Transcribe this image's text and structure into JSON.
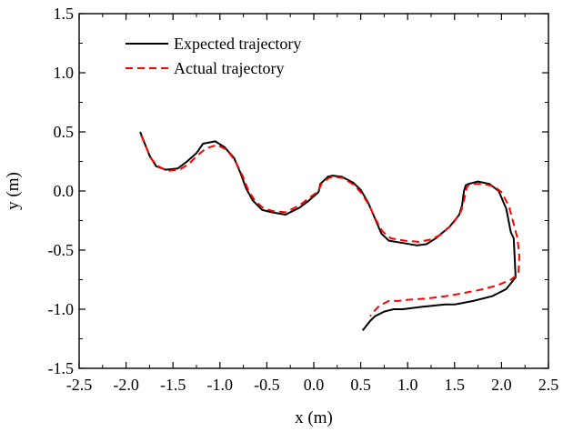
{
  "chart_data": {
    "type": "line",
    "title": "",
    "xlabel": "x (m)",
    "ylabel": "y (m)",
    "xlim": [
      -2.5,
      2.5
    ],
    "ylim": [
      -1.5,
      1.5
    ],
    "x_ticks": [
      -2.5,
      -2.0,
      -1.5,
      -1.0,
      -0.5,
      0.0,
      0.5,
      1.0,
      1.5,
      2.0,
      2.5
    ],
    "y_ticks": [
      -1.5,
      -1.0,
      -0.5,
      0.0,
      0.5,
      1.0,
      1.5
    ],
    "x_tick_labels": [
      "-2.5",
      "-2.0",
      "-1.5",
      "-1.0",
      "-0.5",
      "0.0",
      "0.5",
      "1.0",
      "1.5",
      "2.0",
      "2.5"
    ],
    "y_tick_labels": [
      "-1.5",
      "-1.0",
      "-0.5",
      "0.0",
      "0.5",
      "1.0",
      "1.5"
    ],
    "grid": false,
    "legend_position": "top-left",
    "series": [
      {
        "name": "Expected trajectory",
        "color": "#000000",
        "style": "solid",
        "points": [
          [
            -1.85,
            0.5
          ],
          [
            -1.8,
            0.4
          ],
          [
            -1.75,
            0.3
          ],
          [
            -1.68,
            0.21
          ],
          [
            -1.58,
            0.18
          ],
          [
            -1.45,
            0.19
          ],
          [
            -1.35,
            0.25
          ],
          [
            -1.25,
            0.32
          ],
          [
            -1.18,
            0.4
          ],
          [
            -1.05,
            0.42
          ],
          [
            -0.95,
            0.37
          ],
          [
            -0.85,
            0.28
          ],
          [
            -0.78,
            0.15
          ],
          [
            -0.72,
            0.02
          ],
          [
            -0.65,
            -0.08
          ],
          [
            -0.55,
            -0.16
          ],
          [
            -0.45,
            -0.18
          ],
          [
            -0.3,
            -0.2
          ],
          [
            -0.15,
            -0.14
          ],
          [
            -0.05,
            -0.08
          ],
          [
            0.05,
            -0.01
          ],
          [
            0.07,
            0.06
          ],
          [
            0.15,
            0.12
          ],
          [
            0.2,
            0.13
          ],
          [
            0.3,
            0.12
          ],
          [
            0.42,
            0.07
          ],
          [
            0.5,
            0.01
          ],
          [
            0.58,
            -0.1
          ],
          [
            0.65,
            -0.23
          ],
          [
            0.72,
            -0.36
          ],
          [
            0.8,
            -0.42
          ],
          [
            0.95,
            -0.44
          ],
          [
            1.1,
            -0.46
          ],
          [
            1.2,
            -0.45
          ],
          [
            1.3,
            -0.4
          ],
          [
            1.45,
            -0.3
          ],
          [
            1.55,
            -0.2
          ],
          [
            1.58,
            -0.12
          ],
          [
            1.6,
            0.0
          ],
          [
            1.62,
            0.05
          ],
          [
            1.65,
            0.06
          ],
          [
            1.75,
            0.08
          ],
          [
            1.87,
            0.06
          ],
          [
            1.97,
            0.0
          ],
          [
            2.05,
            -0.15
          ],
          [
            2.1,
            -0.35
          ],
          [
            2.13,
            -0.4
          ],
          [
            2.14,
            -0.55
          ],
          [
            2.15,
            -0.73
          ],
          [
            2.05,
            -0.83
          ],
          [
            1.9,
            -0.89
          ],
          [
            1.7,
            -0.93
          ],
          [
            1.5,
            -0.96
          ],
          [
            1.4,
            -0.96
          ],
          [
            1.15,
            -0.98
          ],
          [
            0.95,
            -1.0
          ],
          [
            0.85,
            -1.0
          ],
          [
            0.75,
            -1.02
          ],
          [
            0.65,
            -1.06
          ],
          [
            0.6,
            -1.1
          ],
          [
            0.52,
            -1.18
          ]
        ]
      },
      {
        "name": "Actual trajectory",
        "color": "#ff0000",
        "style": "dashed",
        "points": [
          [
            -1.84,
            0.47
          ],
          [
            -1.79,
            0.38
          ],
          [
            -1.74,
            0.28
          ],
          [
            -1.66,
            0.21
          ],
          [
            -1.56,
            0.17
          ],
          [
            -1.43,
            0.18
          ],
          [
            -1.33,
            0.23
          ],
          [
            -1.24,
            0.3
          ],
          [
            -1.15,
            0.36
          ],
          [
            -1.03,
            0.39
          ],
          [
            -0.93,
            0.35
          ],
          [
            -0.84,
            0.26
          ],
          [
            -0.76,
            0.13
          ],
          [
            -0.7,
            0.01
          ],
          [
            -0.63,
            -0.08
          ],
          [
            -0.53,
            -0.15
          ],
          [
            -0.43,
            -0.17
          ],
          [
            -0.3,
            -0.18
          ],
          [
            -0.15,
            -0.12
          ],
          [
            -0.05,
            -0.06
          ],
          [
            0.05,
            0.0
          ],
          [
            0.08,
            0.06
          ],
          [
            0.16,
            0.11
          ],
          [
            0.21,
            0.12
          ],
          [
            0.31,
            0.11
          ],
          [
            0.43,
            0.05
          ],
          [
            0.51,
            -0.02
          ],
          [
            0.59,
            -0.12
          ],
          [
            0.66,
            -0.24
          ],
          [
            0.73,
            -0.34
          ],
          [
            0.82,
            -0.4
          ],
          [
            0.97,
            -0.42
          ],
          [
            1.12,
            -0.43
          ],
          [
            1.25,
            -0.41
          ],
          [
            1.35,
            -0.37
          ],
          [
            1.48,
            -0.28
          ],
          [
            1.57,
            -0.17
          ],
          [
            1.6,
            -0.08
          ],
          [
            1.63,
            0.03
          ],
          [
            1.66,
            0.06
          ],
          [
            1.7,
            0.06
          ],
          [
            1.8,
            0.06
          ],
          [
            1.92,
            0.04
          ],
          [
            2.0,
            -0.01
          ],
          [
            2.08,
            -0.13
          ],
          [
            2.13,
            -0.28
          ],
          [
            2.17,
            -0.4
          ],
          [
            2.19,
            -0.55
          ],
          [
            2.18,
            -0.7
          ],
          [
            2.1,
            -0.75
          ],
          [
            1.95,
            -0.8
          ],
          [
            1.75,
            -0.84
          ],
          [
            1.55,
            -0.87
          ],
          [
            1.4,
            -0.89
          ],
          [
            1.2,
            -0.91
          ],
          [
            1.0,
            -0.92
          ],
          [
            0.9,
            -0.93
          ],
          [
            0.8,
            -0.93
          ],
          [
            0.7,
            -0.97
          ],
          [
            0.65,
            -1.01
          ],
          [
            0.6,
            -1.06
          ]
        ]
      }
    ]
  }
}
